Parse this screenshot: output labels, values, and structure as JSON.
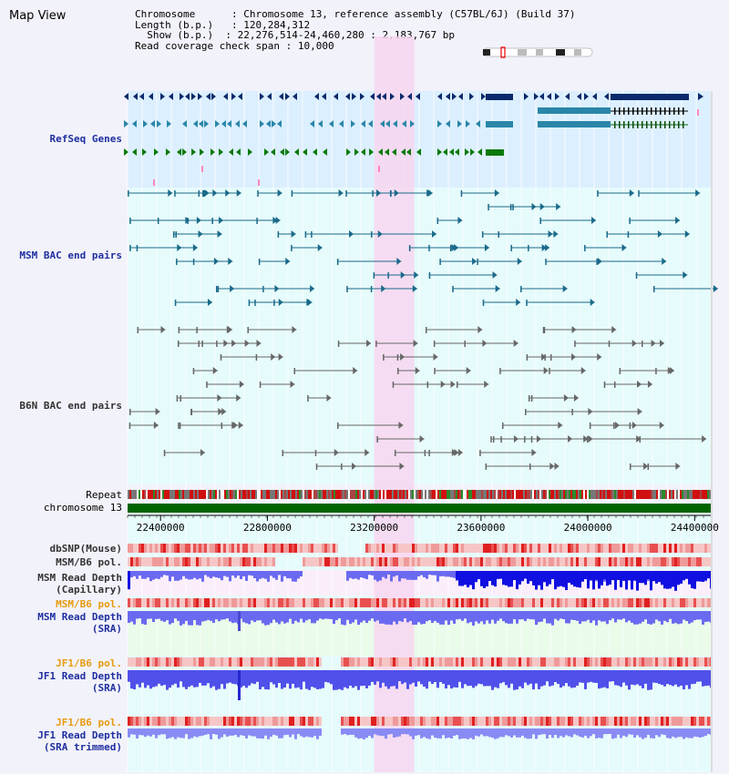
{
  "view_title": "Map View",
  "info": {
    "chromosome_label": "Chromosome",
    "chromosome_value": "Chromosome 13, reference assembly (C57BL/6J) (Build 37)",
    "length_label": "Length (b.p.)",
    "length_value": "120,284,312",
    "show_label": "Show (b.p.)",
    "show_value": "22,276,514-24,460,280 : 2,183,767 bp",
    "span_label": "Read coverage check span",
    "span_value": "10,000"
  },
  "tracks": {
    "refseq": "RefSeq Genes",
    "msm_bac": "MSM BAC end pairs",
    "b6n_bac": "B6N BAC end pairs",
    "repeat": "Repeat",
    "chromosome": "chromosome 13",
    "dbsnp": "dbSNP(Mouse)",
    "msm_b6_pol_1": "MSM/B6 pol.",
    "msm_depth_cap_1": "MSM Read Depth",
    "msm_depth_cap_2": "(Capillary)",
    "msm_b6_pol_2": "MSM/B6 pol.",
    "msm_depth_sra_1": "MSM Read Depth",
    "msm_depth_sra_2": "(SRA)",
    "jf1_b6_pol_1": "JF1/B6 pol.",
    "jf1_depth_sra_1": "JF1 Read Depth",
    "jf1_depth_sra_2": "(SRA)",
    "jf1_b6_pol_2": "JF1/B6 pol.",
    "jf1_depth_trim_1": "JF1 Read Depth",
    "jf1_depth_trim_2": "(SRA trimmed)"
  },
  "axis": {
    "start": 22276514,
    "end": 24460280,
    "ticks": [
      "22400000",
      "22800000",
      "23200000",
      "23600000",
      "24000000",
      "24400000"
    ]
  },
  "highlight": {
    "start": 23200000,
    "end": 23350000
  },
  "colors": {
    "refseq_bg": "#dcefff",
    "bac_bg": "#e6fbfb",
    "highlight": "#f7d6f0",
    "gene_dark": "#0a2a6b",
    "gene_mid": "#2a86a8",
    "gene_green": "#0a7a0a",
    "msm_bac": "#1a6a8a",
    "b6n_bac": "#666666",
    "chromosome": "#006400",
    "snp_light": "#f6c6c6",
    "snp_dark": "#e02020",
    "depth": "#6a6af0",
    "depth_dark": "#1010e0"
  },
  "icons": [
    "chromosome-ideogram-icon"
  ]
}
